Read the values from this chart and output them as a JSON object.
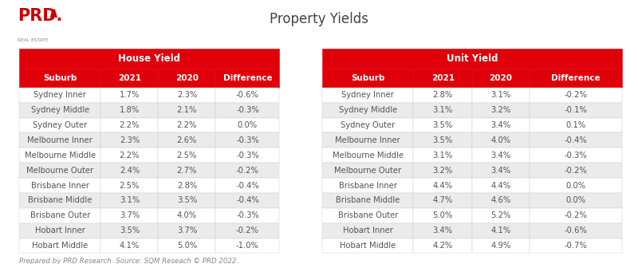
{
  "title": "Property Yields",
  "house_header": "House Yield",
  "unit_header": "Unit Yield",
  "col_headers": [
    "Suburb",
    "2021",
    "2020",
    "Difference"
  ],
  "house_data": [
    [
      "Sydney Inner",
      "1.7%",
      "2.3%",
      "-0.6%"
    ],
    [
      "Sydney Middle",
      "1.8%",
      "2.1%",
      "-0.3%"
    ],
    [
      "Sydney Outer",
      "2.2%",
      "2.2%",
      "0.0%"
    ],
    [
      "Melbourne Inner",
      "2.3%",
      "2.6%",
      "-0.3%"
    ],
    [
      "Melbourne Middle",
      "2.2%",
      "2.5%",
      "-0.3%"
    ],
    [
      "Melbourne Outer",
      "2.4%",
      "2.7%",
      "-0.2%"
    ],
    [
      "Brisbane Inner",
      "2.5%",
      "2.8%",
      "-0.4%"
    ],
    [
      "Brisbane Middle",
      "3.1%",
      "3.5%",
      "-0.4%"
    ],
    [
      "Brisbane Outer",
      "3.7%",
      "4.0%",
      "-0.3%"
    ],
    [
      "Hobart Inner",
      "3.5%",
      "3.7%",
      "-0.2%"
    ],
    [
      "Hobart Middle",
      "4.1%",
      "5.0%",
      "-1.0%"
    ]
  ],
  "unit_data": [
    [
      "Sydney Inner",
      "2.8%",
      "3.1%",
      "-0.2%"
    ],
    [
      "Sydney Middle",
      "3.1%",
      "3.2%",
      "-0.1%"
    ],
    [
      "Sydney Outer",
      "3.5%",
      "3.4%",
      "0.1%"
    ],
    [
      "Melbourne Inner",
      "3.5%",
      "4.0%",
      "-0.4%"
    ],
    [
      "Melbourne Middle",
      "3.1%",
      "3.4%",
      "-0.3%"
    ],
    [
      "Melbourne Outer",
      "3.2%",
      "3.4%",
      "-0.2%"
    ],
    [
      "Brisbane Inner",
      "4.4%",
      "4.4%",
      "0.0%"
    ],
    [
      "Brisbane Middle",
      "4.7%",
      "4.6%",
      "0.0%"
    ],
    [
      "Brisbane Outer",
      "5.0%",
      "5.2%",
      "-0.2%"
    ],
    [
      "Hobart Inner",
      "3.4%",
      "4.1%",
      "-0.6%"
    ],
    [
      "Hobart Middle",
      "4.2%",
      "4.9%",
      "-0.7%"
    ]
  ],
  "footer": "Prepared by PRD Research. Source: SQM Reseach © PRD 2022.",
  "red_color": "#E0000A",
  "white_color": "#FFFFFF",
  "light_gray": "#EBEBEB",
  "white_row": "#FFFFFF",
  "data_text_color": "#555555",
  "title_color": "#444444",
  "bg_color": "#FFFFFF",
  "logo_red": "#CC0000",
  "logo_gray": "#888888"
}
